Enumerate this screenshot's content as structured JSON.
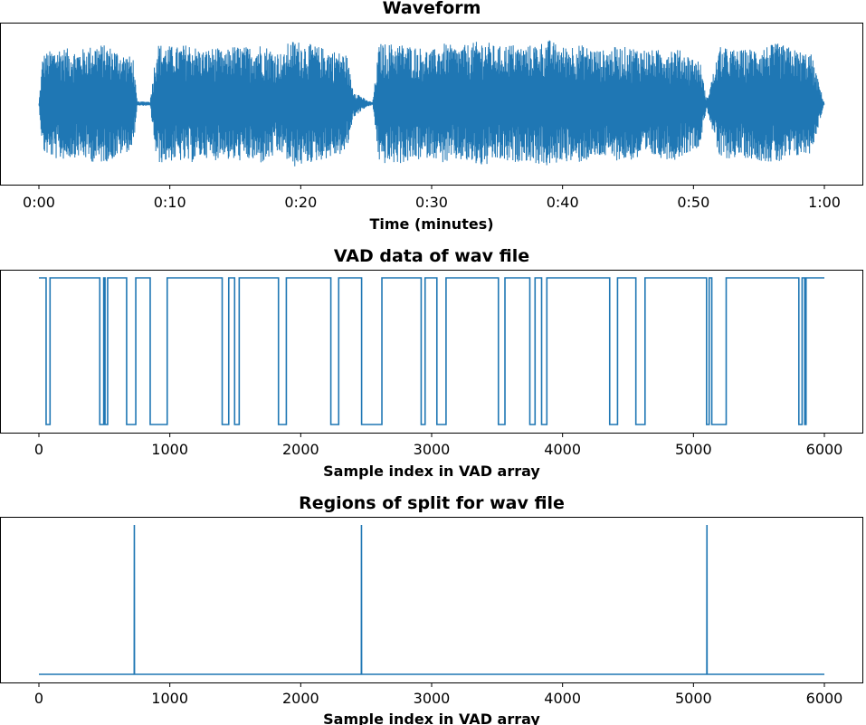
{
  "chart_data": [
    {
      "type": "line",
      "title": "Waveform",
      "xlabel": "Time (minutes)",
      "ylabel": "",
      "xlim": [
        0,
        60
      ],
      "ylim": [
        -1,
        1
      ],
      "xticks": [
        {
          "value": 0,
          "label": "0:00"
        },
        {
          "value": 10,
          "label": "0:10"
        },
        {
          "value": 20,
          "label": "0:20"
        },
        {
          "value": 30,
          "label": "0:30"
        },
        {
          "value": 40,
          "label": "0:40"
        },
        {
          "value": 50,
          "label": "0:50"
        },
        {
          "value": 60,
          "label": "1:00"
        }
      ],
      "yticks": [
        -1,
        -0.5,
        0,
        0.5,
        1
      ],
      "ytick_labels_visible": false,
      "grid": false,
      "amplitude_envelope": {
        "x": [
          0,
          0.3,
          1.5,
          3.0,
          4.5,
          5.5,
          6.5,
          7.2,
          7.5,
          8.0,
          8.5,
          9.0,
          10.5,
          11.5,
          12.5,
          13.5,
          14.3,
          14.5,
          16.0,
          17.0,
          18.0,
          18.8,
          19.0,
          19.5,
          20.5,
          21.5,
          22.5,
          23.5,
          24.0,
          25.0,
          25.5,
          26.0,
          27.5,
          29.0,
          30.0,
          31.0,
          32.0,
          33.0,
          34.0,
          35.0,
          36.0,
          37.0,
          38.0,
          39.0,
          40.0,
          41.0,
          42.0,
          43.0,
          44.0,
          45.5,
          47.0,
          48.5,
          49.5,
          50.5,
          51.0,
          52.0,
          53.5,
          55.0,
          56.5,
          58.0,
          59.0,
          60.0
        ],
        "y": [
          0.0,
          0.7,
          0.8,
          0.75,
          0.85,
          0.8,
          0.7,
          0.65,
          0.03,
          0.03,
          0.03,
          0.85,
          0.8,
          0.85,
          0.75,
          0.8,
          0.7,
          0.82,
          0.8,
          0.85,
          0.75,
          0.7,
          0.85,
          0.9,
          0.85,
          0.8,
          0.75,
          0.7,
          0.2,
          0.05,
          0.02,
          0.85,
          0.85,
          0.8,
          0.75,
          0.85,
          0.8,
          0.85,
          0.9,
          0.8,
          0.85,
          0.8,
          0.85,
          0.9,
          0.8,
          0.85,
          0.8,
          0.75,
          0.8,
          0.8,
          0.75,
          0.8,
          0.7,
          0.6,
          0.05,
          0.8,
          0.75,
          0.8,
          0.85,
          0.75,
          0.7,
          0.0
        ]
      }
    },
    {
      "type": "line",
      "title": "VAD data of wav file",
      "xlabel": "Sample index in VAD array",
      "ylabel": "",
      "xlim": [
        0,
        6000
      ],
      "ylim": [
        0,
        1
      ],
      "xticks": [
        0,
        1000,
        2000,
        3000,
        4000,
        5000,
        6000
      ],
      "yticks": [
        0,
        0.25,
        0.5,
        0.75,
        1
      ],
      "ytick_labels_visible": false,
      "grid": false,
      "step": "post",
      "x": [
        0,
        55,
        85,
        465,
        495,
        505,
        525,
        670,
        740,
        850,
        980,
        1400,
        1450,
        1495,
        1530,
        1830,
        1890,
        2230,
        2290,
        2465,
        2620,
        2920,
        2950,
        3040,
        3110,
        3510,
        3560,
        3750,
        3790,
        3840,
        3880,
        4360,
        4420,
        4560,
        4630,
        5100,
        5120,
        5140,
        5250,
        5805,
        5830,
        5850,
        5860,
        6000
      ],
      "y": [
        1,
        0,
        1,
        0,
        1,
        0,
        1,
        0,
        1,
        0,
        1,
        0,
        1,
        0,
        1,
        0,
        1,
        0,
        1,
        0,
        1,
        0,
        1,
        0,
        1,
        0,
        1,
        0,
        1,
        0,
        1,
        0,
        1,
        0,
        1,
        0,
        1,
        0,
        1,
        0,
        1,
        0,
        1,
        1
      ]
    },
    {
      "type": "line",
      "title": "Regions of split for wav file",
      "xlabel": "Sample index in VAD array",
      "ylabel": "",
      "xlim": [
        0,
        6000
      ],
      "ylim": [
        0,
        1
      ],
      "xticks": [
        0,
        1000,
        2000,
        3000,
        4000,
        5000,
        6000
      ],
      "yticks": [
        0,
        0.25,
        0.5,
        0.75,
        1
      ],
      "ytick_labels_visible": false,
      "grid": false,
      "x": [
        0,
        728,
        729,
        730,
        2463,
        2464,
        2465,
        5102,
        5103,
        5104,
        6000
      ],
      "y": [
        0,
        0,
        1,
        0,
        0,
        1,
        0,
        0,
        1,
        0,
        0
      ]
    }
  ]
}
